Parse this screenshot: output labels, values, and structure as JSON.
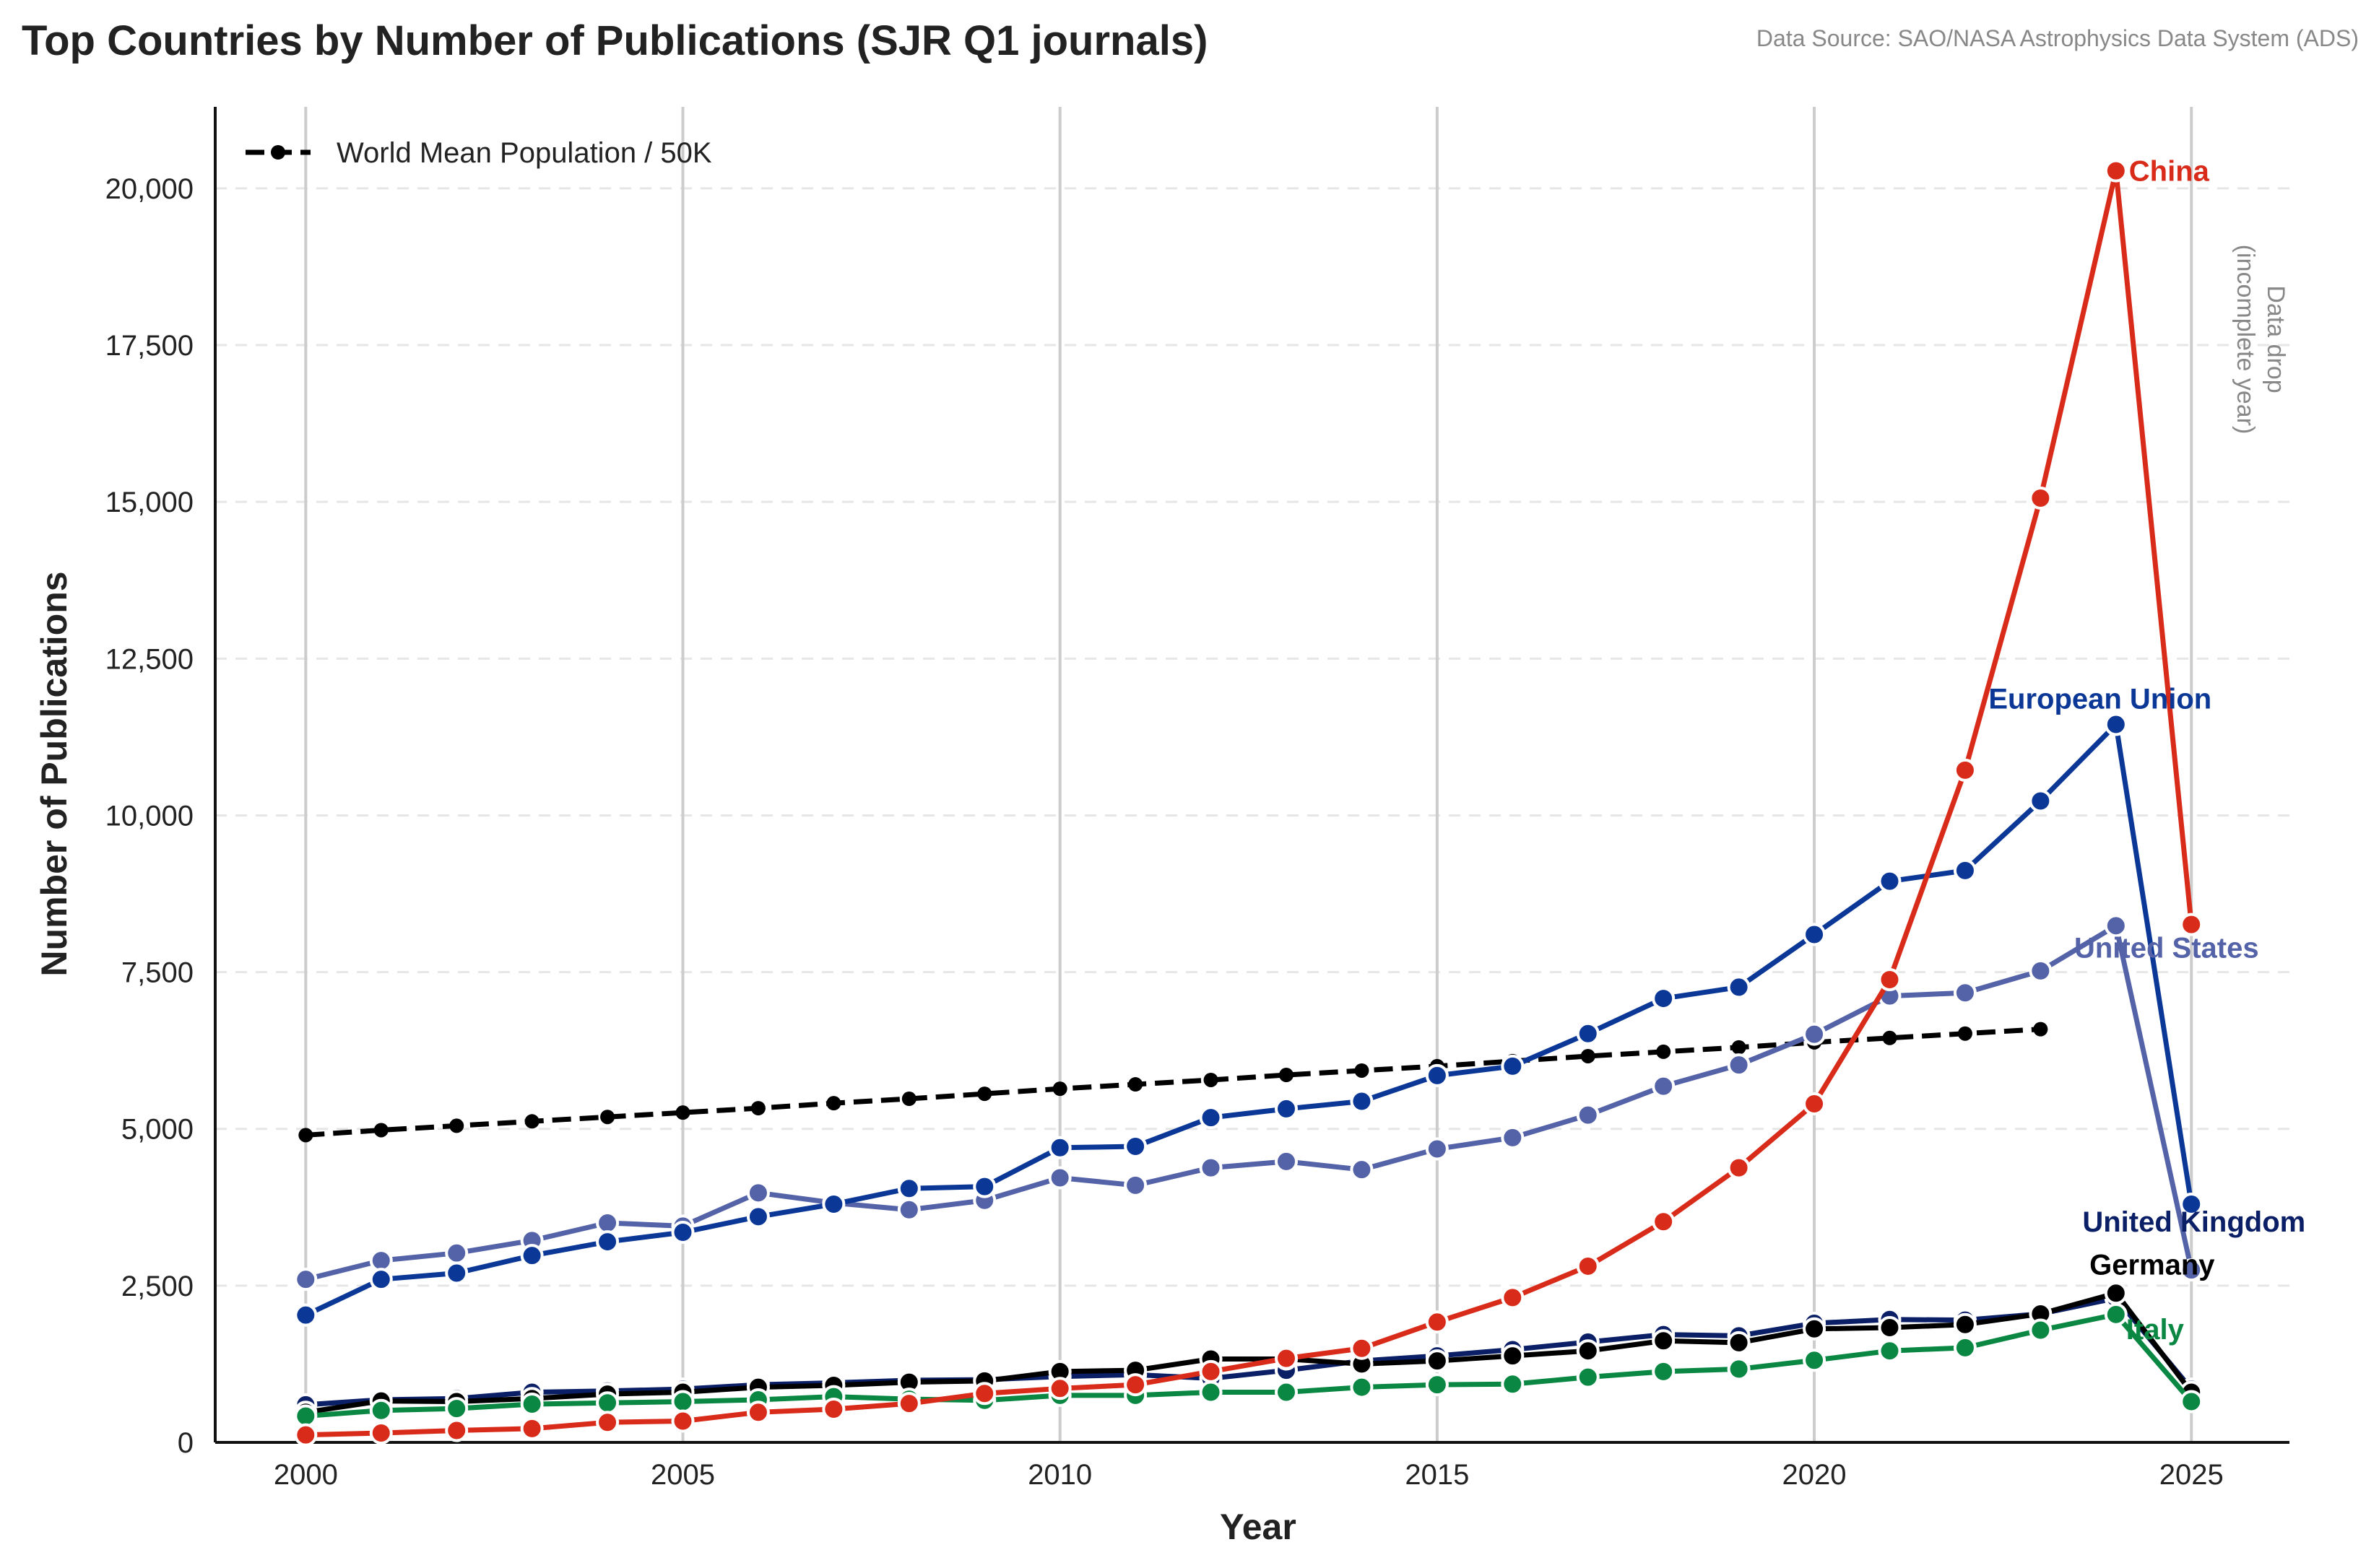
{
  "chart_data": {
    "type": "line",
    "title": "Top Countries by Number of Publications (SJR Q1 journals)",
    "source": "Data Source: SAO/NASA Astrophysics Data System (ADS)",
    "xlabel": "Year",
    "ylabel": "Number of Publications",
    "xlim": [
      1998.8,
      2026.3
    ],
    "ylim": [
      0,
      21300
    ],
    "x_ticks": [
      2000,
      2005,
      2010,
      2015,
      2020,
      2025
    ],
    "x_tick_labels": [
      "2000",
      "2005",
      "2010",
      "2015",
      "2020",
      "2025"
    ],
    "y_ticks": [
      0,
      2500,
      5000,
      7500,
      10000,
      12500,
      15000,
      17500,
      20000
    ],
    "y_tick_labels": [
      "0",
      "2,500",
      "5,000",
      "7,500",
      "10,000",
      "12,500",
      "15,000",
      "17,500",
      "20,000"
    ],
    "grid": {
      "vertical": true,
      "horizontal": "dashed"
    },
    "legend": {
      "placement": "top-left",
      "entries": [
        "World Mean Population / 50K"
      ]
    },
    "annotation": {
      "line1": "Data drop",
      "line2": "(incomplete year)",
      "x": 2025
    },
    "series": [
      {
        "name": "United Kingdom",
        "color": "#0a1f66",
        "x": [
          2000,
          2001,
          2002,
          2003,
          2004,
          2005,
          2006,
          2007,
          2008,
          2009,
          2010,
          2011,
          2012,
          2013,
          2014,
          2015,
          2016,
          2017,
          2018,
          2019,
          2020,
          2021,
          2022,
          2023,
          2024,
          2025
        ],
        "values": [
          600,
          680,
          700,
          800,
          820,
          850,
          920,
          950,
          990,
          1000,
          1050,
          1080,
          1020,
          1150,
          1300,
          1380,
          1480,
          1600,
          1720,
          1700,
          1900,
          1960,
          1950,
          2050,
          2300,
          850
        ],
        "label_dx": -20,
        "label_dy": -16
      },
      {
        "name": "United States",
        "color": "#5462a8",
        "x": [
          2000,
          2001,
          2002,
          2003,
          2004,
          2005,
          2006,
          2007,
          2008,
          2009,
          2010,
          2011,
          2012,
          2013,
          2014,
          2015,
          2016,
          2017,
          2018,
          2019,
          2020,
          2021,
          2022,
          2023,
          2024,
          2025
        ],
        "values": [
          2600,
          2900,
          3020,
          3220,
          3500,
          3450,
          3980,
          3820,
          3710,
          3860,
          4220,
          4100,
          4380,
          4480,
          4350,
          4680,
          4860,
          5220,
          5680,
          6020,
          6510,
          7120,
          7170,
          7520,
          8240,
          2750
        ],
        "label_dx": -28,
        "label_dy": 14
      },
      {
        "name": "European Union",
        "color": "#0b3796",
        "x": [
          2000,
          2001,
          2002,
          2003,
          2004,
          2005,
          2006,
          2007,
          2008,
          2009,
          2010,
          2011,
          2012,
          2013,
          2014,
          2015,
          2016,
          2017,
          2018,
          2019,
          2020,
          2021,
          2022,
          2023,
          2024,
          2025
        ],
        "values": [
          2030,
          2600,
          2700,
          2980,
          3200,
          3350,
          3600,
          3800,
          4050,
          4080,
          4700,
          4720,
          5180,
          5320,
          5440,
          5850,
          6000,
          6520,
          7080,
          7260,
          8100,
          8950,
          9120,
          10230,
          11450,
          3800
        ],
        "label_dx": -20,
        "label_dy": -20
      },
      {
        "name": "Germany",
        "color": "#000000",
        "x": [
          2000,
          2001,
          2002,
          2003,
          2004,
          2005,
          2006,
          2007,
          2008,
          2009,
          2010,
          2011,
          2012,
          2013,
          2014,
          2015,
          2016,
          2017,
          2018,
          2019,
          2020,
          2021,
          2022,
          2023,
          2024,
          2025
        ],
        "values": [
          480,
          660,
          650,
          700,
          770,
          800,
          880,
          910,
          960,
          980,
          1130,
          1150,
          1330,
          1330,
          1250,
          1300,
          1380,
          1460,
          1620,
          1590,
          1810,
          1830,
          1880,
          2050,
          2380,
          800
        ],
        "label_dx": 130,
        "label_dy": -22
      },
      {
        "name": "Italy",
        "color": "#0a8843",
        "x": [
          2000,
          2001,
          2002,
          2003,
          2004,
          2005,
          2006,
          2007,
          2008,
          2009,
          2010,
          2011,
          2012,
          2013,
          2014,
          2015,
          2016,
          2017,
          2018,
          2019,
          2020,
          2021,
          2022,
          2023,
          2024,
          2025
        ],
        "values": [
          420,
          510,
          540,
          610,
          630,
          650,
          680,
          730,
          690,
          670,
          750,
          750,
          800,
          800,
          880,
          920,
          930,
          1040,
          1130,
          1170,
          1310,
          1460,
          1510,
          1790,
          2040,
          650
        ],
        "label_dx": 10,
        "label_dy": 36
      },
      {
        "name": "China",
        "color": "#d92b1a",
        "x": [
          2000,
          2001,
          2002,
          2003,
          2004,
          2005,
          2006,
          2007,
          2008,
          2009,
          2010,
          2011,
          2012,
          2013,
          2014,
          2015,
          2016,
          2017,
          2018,
          2019,
          2020,
          2021,
          2022,
          2023,
          2024,
          2025
        ],
        "values": [
          120,
          150,
          190,
          220,
          320,
          340,
          480,
          530,
          620,
          780,
          860,
          920,
          1130,
          1340,
          1500,
          1920,
          2310,
          2810,
          3520,
          4380,
          5400,
          7380,
          10720,
          15060,
          20280,
          8260
        ],
        "label_dx": 16,
        "label_dy": 14
      }
    ],
    "reference_line": {
      "name": "World Mean Population / 50K",
      "color": "#000000",
      "x": [
        2000,
        2001,
        2002,
        2003,
        2004,
        2005,
        2006,
        2007,
        2008,
        2009,
        2010,
        2011,
        2012,
        2013,
        2014,
        2015,
        2016,
        2017,
        2018,
        2019,
        2020,
        2021,
        2022,
        2023
      ],
      "values": [
        4900,
        4980,
        5050,
        5120,
        5190,
        5260,
        5330,
        5410,
        5480,
        5560,
        5640,
        5710,
        5780,
        5860,
        5930,
        6000,
        6080,
        6160,
        6230,
        6300,
        6380,
        6450,
        6520,
        6590
      ]
    }
  }
}
